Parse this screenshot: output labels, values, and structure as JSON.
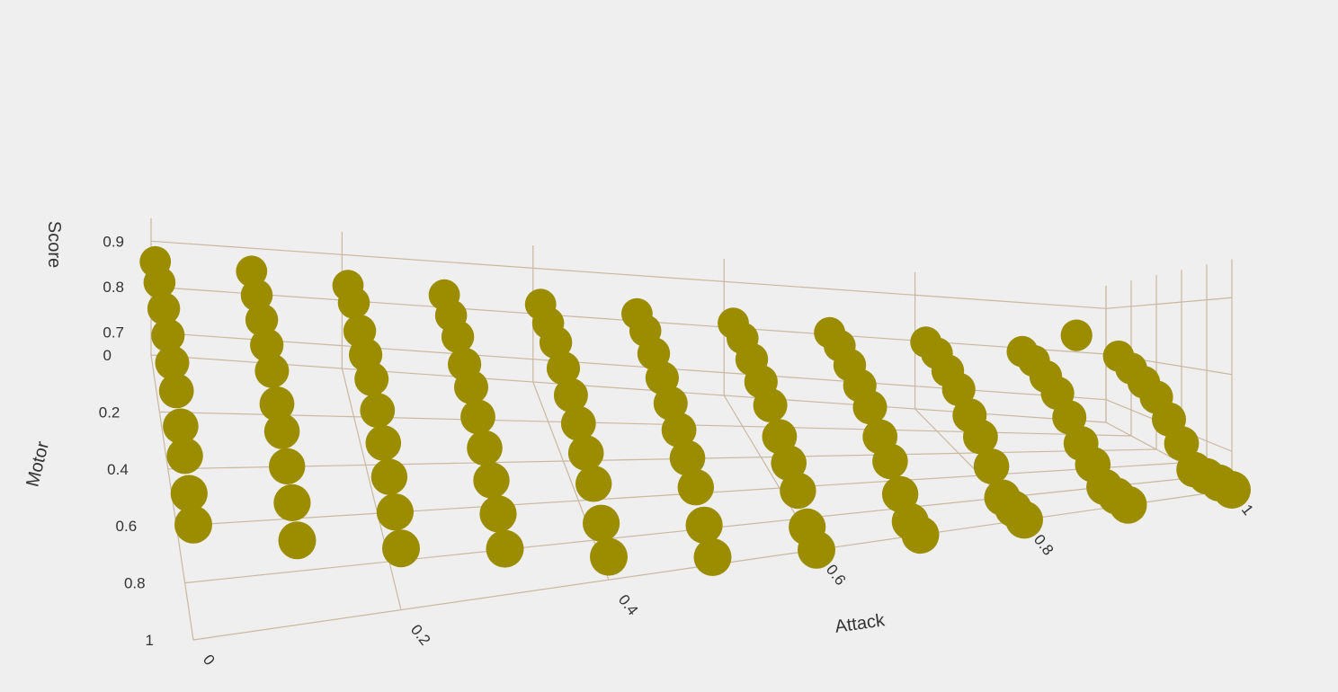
{
  "chart_data": {
    "type": "scatter3d",
    "title": "",
    "axes": {
      "x": {
        "label": "Attack",
        "ticks": [
          "0",
          "0.2",
          "0.4",
          "0.6",
          "0.8",
          "1"
        ]
      },
      "y": {
        "label": "Motor",
        "ticks": [
          "0",
          "0.2",
          "0.4",
          "0.6",
          "0.8",
          "1"
        ]
      },
      "z": {
        "label": "Score",
        "ticks": [
          "0.7",
          "0.8",
          "0.9"
        ]
      }
    },
    "grid": true,
    "marker_color": "#9b8c00",
    "grid_color": "#c9b8a2",
    "background_color": "#efefef",
    "point_rows": [
      [
        [
          0.0,
          0.9
        ],
        [
          0.1,
          0.89
        ],
        [
          0.2,
          0.87
        ],
        [
          0.3,
          0.86
        ],
        [
          0.4,
          0.85
        ],
        [
          0.5,
          0.84
        ],
        [
          0.6,
          0.83
        ],
        [
          0.7,
          0.82
        ],
        [
          0.8,
          0.81
        ],
        [
          0.9,
          0.8
        ],
        [
          1.0,
          0.8
        ]
      ],
      [
        [
          0.0,
          0.9
        ],
        [
          0.1,
          0.88
        ],
        [
          0.2,
          0.87
        ],
        [
          0.3,
          0.85
        ],
        [
          0.4,
          0.84
        ],
        [
          0.5,
          0.83
        ],
        [
          0.6,
          0.82
        ],
        [
          0.7,
          0.81
        ],
        [
          0.8,
          0.8
        ],
        [
          0.9,
          0.79
        ],
        [
          1.0,
          0.78
        ]
      ],
      [
        [
          0.0,
          0.89
        ],
        [
          0.1,
          0.87
        ],
        [
          0.2,
          0.85
        ],
        [
          0.3,
          0.84
        ],
        [
          0.4,
          0.83
        ],
        [
          0.5,
          0.81
        ],
        [
          0.6,
          0.8
        ],
        [
          0.7,
          0.79
        ],
        [
          0.8,
          0.78
        ],
        [
          0.9,
          0.77
        ],
        [
          1.0,
          0.76
        ]
      ],
      [
        [
          0.0,
          0.88
        ],
        [
          0.1,
          0.86
        ],
        [
          0.2,
          0.84
        ],
        [
          0.3,
          0.82
        ],
        [
          0.4,
          0.81
        ],
        [
          0.5,
          0.79
        ],
        [
          0.6,
          0.78
        ],
        [
          0.7,
          0.77
        ],
        [
          0.8,
          0.76
        ],
        [
          0.9,
          0.75
        ],
        [
          1.0,
          0.74
        ]
      ],
      [
        [
          0.0,
          0.87
        ],
        [
          0.1,
          0.85
        ],
        [
          0.2,
          0.83
        ],
        [
          0.3,
          0.81
        ],
        [
          0.4,
          0.79
        ],
        [
          0.5,
          0.77
        ],
        [
          0.6,
          0.76
        ],
        [
          0.7,
          0.75
        ],
        [
          0.8,
          0.73
        ],
        [
          0.9,
          0.72
        ],
        [
          1.0,
          0.71
        ]
      ],
      [
        [
          0.0,
          0.86
        ],
        [
          0.1,
          0.83
        ],
        [
          0.2,
          0.81
        ],
        [
          0.3,
          0.79
        ],
        [
          0.4,
          0.77
        ],
        [
          0.5,
          0.75
        ],
        [
          0.6,
          0.73
        ],
        [
          0.7,
          0.72
        ],
        [
          0.8,
          0.71
        ],
        [
          0.9,
          0.69
        ],
        [
          1.0,
          0.68
        ]
      ],
      [
        [
          0.0,
          0.84
        ],
        [
          0.1,
          0.82
        ],
        [
          0.2,
          0.79
        ],
        [
          0.3,
          0.77
        ],
        [
          0.4,
          0.75
        ],
        [
          0.5,
          0.73
        ],
        [
          0.6,
          0.71
        ],
        [
          0.7,
          0.7
        ],
        [
          0.8,
          0.68
        ],
        [
          0.9,
          0.67
        ],
        [
          1.0,
          0.65
        ]
      ],
      [
        [
          0.0,
          0.83
        ],
        [
          0.1,
          0.8
        ],
        [
          0.2,
          0.77
        ],
        [
          0.3,
          0.75
        ],
        [
          0.4,
          0.73
        ],
        [
          0.5,
          0.71
        ],
        [
          0.6,
          0.69
        ],
        [
          0.7,
          0.67
        ],
        [
          0.8,
          0.65
        ],
        [
          0.9,
          0.64
        ],
        [
          1.0,
          0.62
        ]
      ],
      [
        [
          0.0,
          0.81
        ],
        [
          0.1,
          0.78
        ],
        [
          0.2,
          0.75
        ],
        [
          0.3,
          0.73
        ],
        [
          0.4,
          0.7
        ],
        [
          0.5,
          0.68
        ],
        [
          0.6,
          0.66
        ],
        [
          0.7,
          0.64
        ],
        [
          0.8,
          0.63
        ],
        [
          0.9,
          0.61
        ],
        [
          1.0,
          0.6
        ]
      ],
      [
        [
          0.0,
          0.8
        ],
        [
          0.1,
          0.76
        ],
        [
          0.2,
          0.73
        ],
        [
          0.3,
          0.71
        ],
        [
          0.4,
          0.68
        ],
        [
          0.5,
          0.66
        ],
        [
          0.6,
          0.64
        ],
        [
          0.7,
          0.62
        ],
        [
          0.8,
          0.6
        ],
        [
          0.9,
          0.58
        ],
        [
          1.0,
          0.57
        ]
      ]
    ],
    "row_motor_values": [
      0.1,
      0.2,
      0.3,
      0.4,
      0.5,
      0.6,
      0.7,
      0.8,
      0.9,
      1.0
    ],
    "extra_points": [
      {
        "attack": 0.95,
        "motor": 0.15,
        "score": 0.84
      },
      {
        "attack": 0.9,
        "motor": 0.8,
        "score": 0.6
      }
    ]
  }
}
